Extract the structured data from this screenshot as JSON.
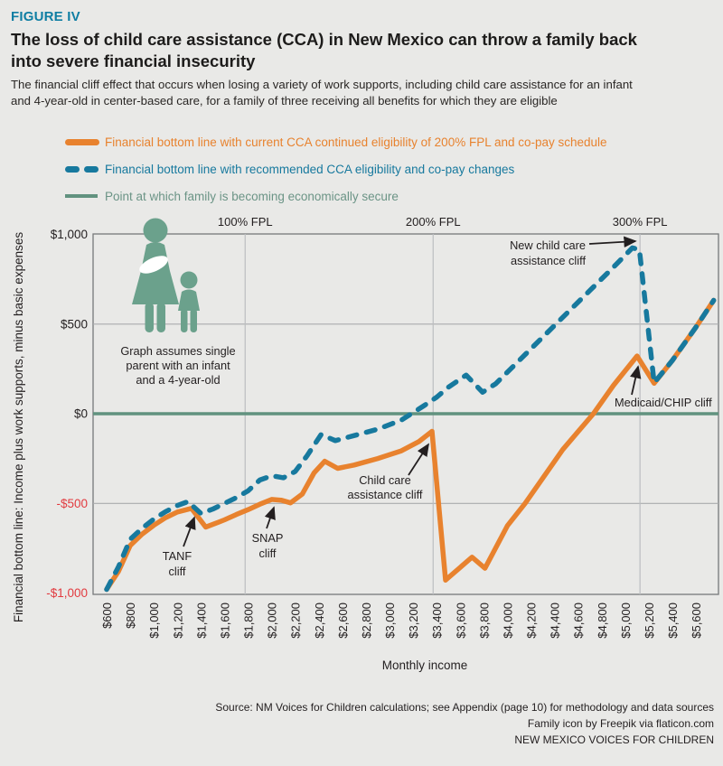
{
  "header": {
    "figure_label": "FIGURE IV",
    "title_lines": [
      "The loss of child care assistance (CCA) in New Mexico can throw a family back",
      "into severe financial insecurity"
    ],
    "subtitle_lines": [
      "The financial cliff effect that occurs when losing a variety of work supports, including child care assistance for an infant",
      "and 4-year-old in center-based care, for a family of three receiving all benefits for which they are eligible"
    ]
  },
  "legend": {
    "items": [
      {
        "label": "Financial bottom line with current CCA continued eligibility of 200% FPL and co-pay schedule",
        "color": "#e8822e",
        "style": "solid"
      },
      {
        "label": "Financial bottom line with recommended CCA eligibility and co-pay changes",
        "color": "#17799e",
        "style": "dashed"
      },
      {
        "label": "Point at which family is becoming economically secure",
        "color": "#61927f",
        "style": "thin"
      }
    ]
  },
  "chart_data": {
    "type": "line",
    "xlabel": "Monthly income",
    "ylabel": "Financial bottom line: Income plus work supports, minus basic expenses",
    "xlim": [
      600,
      5750
    ],
    "ylim": [
      -1000,
      1000
    ],
    "grid": true,
    "x_tick_labels": [
      "$600",
      "$800",
      "$1,000",
      "$1,200",
      "$1,400",
      "$1,600",
      "$1,800",
      "$2,000",
      "$2,200",
      "$2,400",
      "$2,600",
      "$2,800",
      "$3,000",
      "$3,200",
      "$3,400",
      "$3,600",
      "$3,800",
      "$4,000",
      "$4,200",
      "$4,400",
      "$4,600",
      "$4,800",
      "$5,000",
      "$5,200",
      "$5,400",
      "$5,600"
    ],
    "y_ticks": [
      1000,
      500,
      0,
      -500,
      -1000
    ],
    "y_tick_labels": [
      "$1,000",
      "$500",
      "$0",
      "-$500",
      "-$1,000"
    ],
    "fpl_lines": [
      {
        "label": "100% FPL",
        "income": 1775
      },
      {
        "label": "200% FPL",
        "income": 3370
      },
      {
        "label": "300% FPL",
        "income": 5125
      }
    ],
    "secure_line": {
      "value": 0,
      "label": "Point at which family is becoming economically secure",
      "color": "#61927f"
    },
    "series": [
      {
        "name": "Financial bottom line with current CCA continued eligibility of 200% FPL and co-pay schedule",
        "color": "#e8822e",
        "dash": false,
        "points": [
          [
            600,
            -980
          ],
          [
            700,
            -880
          ],
          [
            800,
            -735
          ],
          [
            900,
            -672
          ],
          [
            1000,
            -622
          ],
          [
            1100,
            -580
          ],
          [
            1200,
            -548
          ],
          [
            1320,
            -528
          ],
          [
            1440,
            -632
          ],
          [
            1550,
            -605
          ],
          [
            1600,
            -592
          ],
          [
            1700,
            -562
          ],
          [
            1800,
            -535
          ],
          [
            1900,
            -505
          ],
          [
            2000,
            -478
          ],
          [
            2080,
            -482
          ],
          [
            2160,
            -497
          ],
          [
            2260,
            -448
          ],
          [
            2360,
            -330
          ],
          [
            2450,
            -265
          ],
          [
            2560,
            -305
          ],
          [
            2700,
            -286
          ],
          [
            2900,
            -250
          ],
          [
            3100,
            -207
          ],
          [
            3250,
            -155
          ],
          [
            3360,
            -98
          ],
          [
            3475,
            -928
          ],
          [
            3700,
            -800
          ],
          [
            3810,
            -862
          ],
          [
            4000,
            -625
          ],
          [
            4150,
            -500
          ],
          [
            4470,
            -200
          ],
          [
            4730,
            0
          ],
          [
            4900,
            158
          ],
          [
            5100,
            322
          ],
          [
            5245,
            170
          ],
          [
            5400,
            297
          ],
          [
            5600,
            483
          ],
          [
            5750,
            632
          ]
        ]
      },
      {
        "name": "Financial bottom line with recommended CCA eligibility and co-pay changes",
        "color": "#17799e",
        "dash": true,
        "points": [
          [
            600,
            -980
          ],
          [
            700,
            -855
          ],
          [
            800,
            -700
          ],
          [
            900,
            -640
          ],
          [
            1000,
            -588
          ],
          [
            1100,
            -546
          ],
          [
            1200,
            -512
          ],
          [
            1290,
            -490
          ],
          [
            1400,
            -556
          ],
          [
            1500,
            -532
          ],
          [
            1600,
            -500
          ],
          [
            1700,
            -468
          ],
          [
            1800,
            -430
          ],
          [
            1900,
            -370
          ],
          [
            2000,
            -346
          ],
          [
            2100,
            -357
          ],
          [
            2200,
            -322
          ],
          [
            2300,
            -235
          ],
          [
            2420,
            -116
          ],
          [
            2540,
            -150
          ],
          [
            2700,
            -122
          ],
          [
            2900,
            -86
          ],
          [
            3100,
            -36
          ],
          [
            3300,
            48
          ],
          [
            3400,
            92
          ],
          [
            3500,
            148
          ],
          [
            3650,
            215
          ],
          [
            3790,
            120
          ],
          [
            3900,
            167
          ],
          [
            4100,
            297
          ],
          [
            4300,
            427
          ],
          [
            4500,
            557
          ],
          [
            4700,
            687
          ],
          [
            4900,
            817
          ],
          [
            5060,
            925
          ],
          [
            5120,
            915
          ],
          [
            5245,
            173
          ],
          [
            5400,
            297
          ],
          [
            5600,
            483
          ],
          [
            5750,
            632
          ]
        ]
      }
    ],
    "annotations": [
      "TANF cliff",
      "SNAP cliff",
      "Child care assistance cliff",
      "New child care assistance cliff",
      "Medicaid/CHIP cliff"
    ]
  },
  "notes": {
    "family_note_lines": [
      "Graph assumes single",
      "parent with an infant",
      "and a 4-year-old"
    ],
    "tanf_lines": [
      "TANF",
      "cliff"
    ],
    "snap_lines": [
      "SNAP",
      "cliff"
    ],
    "cca_lines": [
      "Child care",
      "assistance cliff"
    ],
    "new_cca_lines": [
      "New child care",
      "assistance cliff"
    ],
    "medicaid": "Medicaid/CHIP cliff"
  },
  "footer": {
    "lines": [
      "Source: NM Voices for Children calculations; see Appendix (page 10) for methodology and data sources",
      "Family icon by Freepik via flaticon.com",
      "NEW MEXICO VOICES FOR CHILDREN"
    ]
  }
}
